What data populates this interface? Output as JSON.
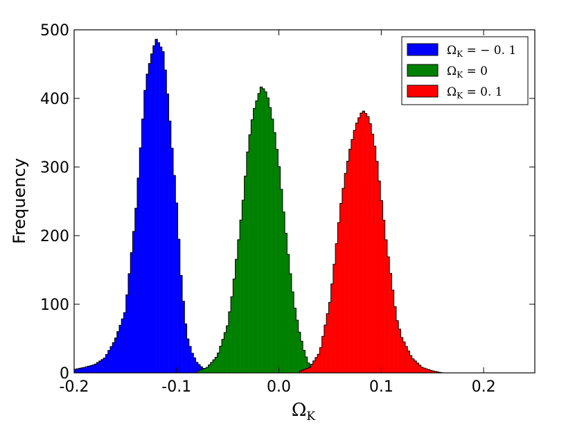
{
  "chart_data": {
    "type": "histogram",
    "title": "",
    "xlabel": "Ω",
    "xlabel_sub": "K",
    "ylabel": "Frequency",
    "xlim": [
      -0.2,
      0.25
    ],
    "ylim": [
      0,
      500
    ],
    "grid": false,
    "legend_placement": "top-right",
    "x_ticks": [
      {
        "value": -0.2,
        "label": "-0.2"
      },
      {
        "value": -0.1,
        "label": "-0.1"
      },
      {
        "value": 0.0,
        "label": "0.0"
      },
      {
        "value": 0.1,
        "label": "0.1"
      },
      {
        "value": 0.2,
        "label": "0.2"
      }
    ],
    "y_ticks": [
      {
        "value": 0,
        "label": "0"
      },
      {
        "value": 100,
        "label": "100"
      },
      {
        "value": 200,
        "label": "200"
      },
      {
        "value": 300,
        "label": "300"
      },
      {
        "value": 400,
        "label": "400"
      },
      {
        "value": 500,
        "label": "500"
      }
    ],
    "series": [
      {
        "name": "Ω_K = −0.1",
        "legend_main": "Ω",
        "legend_sub": "K",
        "legend_rest": " = − 0. 1",
        "color": "#0000ff",
        "x": [
          -0.2,
          -0.19,
          -0.18,
          -0.17,
          -0.16,
          -0.15,
          -0.14,
          -0.135,
          -0.13,
          -0.125,
          -0.12,
          -0.117,
          -0.113,
          -0.11,
          -0.105,
          -0.1,
          -0.095,
          -0.09,
          -0.085,
          -0.08,
          -0.075,
          -0.07,
          -0.06
        ],
        "y": [
          5,
          8,
          12,
          22,
          48,
          90,
          230,
          330,
          425,
          460,
          487,
          480,
          468,
          430,
          340,
          250,
          130,
          55,
          30,
          15,
          8,
          3,
          0
        ]
      },
      {
        "name": "Ω_K = 0",
        "legend_main": "Ω",
        "legend_sub": "K",
        "legend_rest": " = 0",
        "color": "#008000",
        "x": [
          -0.08,
          -0.07,
          -0.06,
          -0.05,
          -0.045,
          -0.04,
          -0.035,
          -0.03,
          -0.025,
          -0.02,
          -0.017,
          -0.013,
          -0.01,
          -0.005,
          0.0,
          0.005,
          0.01,
          0.015,
          0.02,
          0.025,
          0.03,
          0.04
        ],
        "y": [
          2,
          8,
          25,
          70,
          120,
          185,
          250,
          330,
          380,
          405,
          418,
          410,
          398,
          360,
          305,
          230,
          160,
          100,
          60,
          30,
          10,
          0
        ]
      },
      {
        "name": "Ω_K = 0.1",
        "legend_main": "Ω",
        "legend_sub": "K",
        "legend_rest": " = 0. 1",
        "color": "#ff0000",
        "x": [
          0.02,
          0.03,
          0.04,
          0.05,
          0.055,
          0.06,
          0.065,
          0.07,
          0.075,
          0.08,
          0.083,
          0.087,
          0.09,
          0.095,
          0.1,
          0.105,
          0.11,
          0.115,
          0.12,
          0.13,
          0.14,
          0.15,
          0.16
        ],
        "y": [
          2,
          8,
          30,
          105,
          170,
          240,
          290,
          330,
          360,
          378,
          382,
          374,
          360,
          320,
          255,
          190,
          135,
          80,
          52,
          22,
          8,
          3,
          0
        ]
      }
    ]
  }
}
